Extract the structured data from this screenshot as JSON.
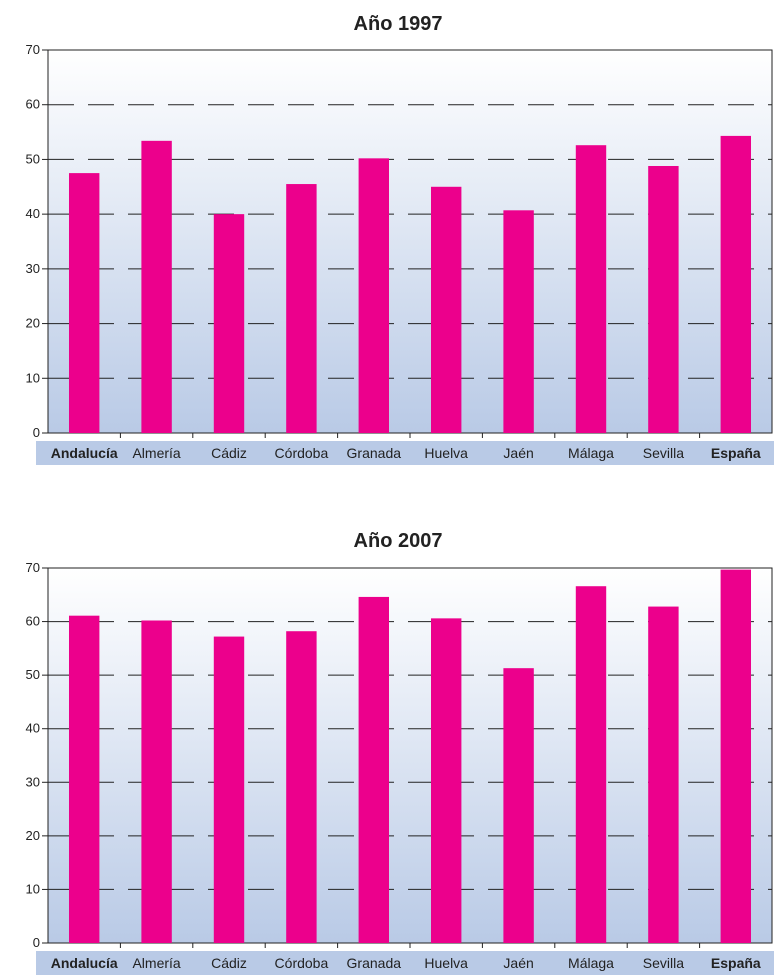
{
  "chart_data": [
    {
      "type": "bar",
      "title": "Año 1997",
      "categories": [
        "Andalucía",
        "Almería",
        "Cádiz",
        "Córdoba",
        "Granada",
        "Huelva",
        "Jaén",
        "Málaga",
        "Sevilla",
        "España"
      ],
      "bold_categories": [
        "Andalucía",
        "España"
      ],
      "values": [
        47.5,
        53.4,
        40.0,
        45.5,
        50.2,
        45.0,
        40.7,
        52.6,
        48.8,
        54.3
      ],
      "ylim": [
        0,
        70
      ],
      "yticks": [
        0,
        10,
        20,
        30,
        40,
        50,
        60,
        70
      ],
      "ytick_labels": [
        "0",
        "10",
        "20",
        "30",
        "40",
        "50",
        "60",
        "70"
      ],
      "xlabel": "",
      "ylabel": "",
      "grid": "dashed horizontal",
      "legend": "none"
    },
    {
      "type": "bar",
      "title": "Año 2007",
      "categories": [
        "Andalucía",
        "Almería",
        "Cádiz",
        "Córdoba",
        "Granada",
        "Huelva",
        "Jaén",
        "Málaga",
        "Sevilla",
        "España"
      ],
      "bold_categories": [
        "Andalucía",
        "España"
      ],
      "values": [
        61.1,
        60.2,
        57.2,
        58.2,
        64.6,
        60.6,
        51.3,
        66.6,
        62.8,
        69.7
      ],
      "ylim": [
        0,
        70
      ],
      "yticks": [
        0,
        10,
        20,
        30,
        40,
        50,
        60,
        70
      ],
      "ytick_labels": [
        "0",
        "10",
        "20",
        "30",
        "40",
        "50",
        "60",
        "70"
      ],
      "xlabel": "",
      "ylabel": "",
      "grid": "dashed horizontal",
      "legend": "none"
    }
  ],
  "colors": {
    "bar": "#ec008c",
    "plot_top": "#ffffff",
    "plot_bottom": "#b9cae6",
    "category_band": "#b9cae6",
    "grid": "#222222",
    "axis": "#222222"
  }
}
